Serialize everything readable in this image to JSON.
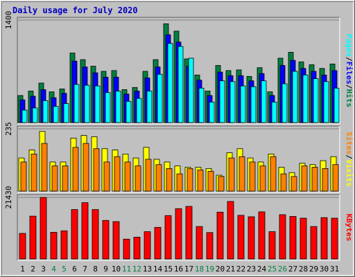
{
  "chart_data": {
    "type": "bar",
    "title": "Daily usage for July 2020",
    "x": [
      "1",
      "2",
      "3",
      "4",
      "5",
      "6",
      "7",
      "8",
      "9",
      "10",
      "11",
      "12",
      "13",
      "14",
      "15",
      "16",
      "17",
      "18",
      "19",
      "20",
      "21",
      "22",
      "23",
      "24",
      "25",
      "26",
      "27",
      "28",
      "29",
      "30",
      "31"
    ],
    "weekend_days": [
      4,
      5,
      11,
      12,
      18,
      19,
      25,
      26
    ],
    "colors": {
      "hits": "#008040",
      "files": "#0000ff",
      "pages": "#00ffff",
      "visits": "#ffff00",
      "sites": "#ff8000",
      "kbytes": "#ff0000",
      "weekday_label": "#000000",
      "weekend_label": "#008040",
      "title": "#0000c0"
    },
    "panels": [
      {
        "name": "hits-files-pages",
        "ytick": "1400",
        "ymax": 1400,
        "right_label": [
          "Pages",
          "Files",
          "Hits"
        ],
        "right_sep": "/",
        "right_colors": [
          "#00ffff",
          "#0000ff",
          "#008040"
        ],
        "series": [
          {
            "name": "Hits",
            "color": "#008040",
            "values": [
              370,
              430,
              540,
              420,
              460,
              950,
              860,
              770,
              700,
              710,
              450,
              480,
              700,
              860,
              1350,
              1250,
              870,
              650,
              430,
              780,
              710,
              720,
              630,
              750,
              420,
              880,
              960,
              830,
              790,
              740,
              800
            ]
          },
          {
            "name": "Files",
            "color": "#0000ff",
            "values": [
              310,
              360,
              450,
              340,
              400,
              840,
              760,
              680,
              620,
              620,
              390,
              430,
              610,
              760,
              1200,
              1100,
              770,
              580,
              370,
              690,
              640,
              640,
              570,
              670,
              370,
              780,
              850,
              740,
              700,
              650,
              710
            ]
          },
          {
            "name": "Pages",
            "color": "#00ffff",
            "values": [
              170,
              200,
              300,
              220,
              260,
              520,
              510,
              500,
              410,
              430,
              290,
              330,
              430,
              660,
              1080,
              1040,
              880,
              470,
              280,
              570,
              560,
              500,
              490,
              570,
              280,
              530,
              700,
              650,
              600,
              560,
              470
            ]
          }
        ]
      },
      {
        "name": "visits-sites",
        "ytick": "235",
        "ymax": 235,
        "right_label": [
          "Sites",
          "Visits"
        ],
        "right_sep": "/",
        "right_colors": [
          "#ff8000",
          "#ffff00"
        ],
        "series": [
          {
            "name": "Visits",
            "color": "#ffff00",
            "values": [
              125,
              155,
              225,
              110,
              110,
              200,
              210,
              205,
              160,
              155,
              140,
              125,
              165,
              120,
              110,
              95,
              90,
              90,
              85,
              60,
              145,
              160,
              125,
              110,
              140,
              90,
              70,
              105,
              100,
              115,
              130
            ]
          },
          {
            "name": "Sites",
            "color": "#ff8000",
            "values": [
              110,
              140,
              180,
              95,
              95,
              165,
              180,
              160,
              110,
              130,
              110,
              95,
              120,
              100,
              85,
              65,
              85,
              80,
              75,
              55,
              125,
              130,
              110,
              95,
              130,
              65,
              55,
              95,
              90,
              85,
              100
            ]
          }
        ]
      },
      {
        "name": "kbytes",
        "ytick": "21430",
        "ymax": 21430,
        "right_label": [
          "KBytes"
        ],
        "right_sep": "",
        "right_colors": [
          "#ff0000"
        ],
        "series": [
          {
            "name": "KBytes",
            "color": "#ff0000",
            "values": [
              8900,
              14900,
              21400,
              9300,
              9800,
              17200,
              19600,
              17200,
              13400,
              13000,
              6900,
              7600,
              9500,
              11000,
              15100,
              17500,
              18300,
              11300,
              9200,
              16300,
              20000,
              15200,
              14700,
              16400,
              9500,
              15400,
              14800,
              14200,
              11300,
              14400,
              14200
            ]
          }
        ]
      }
    ]
  }
}
